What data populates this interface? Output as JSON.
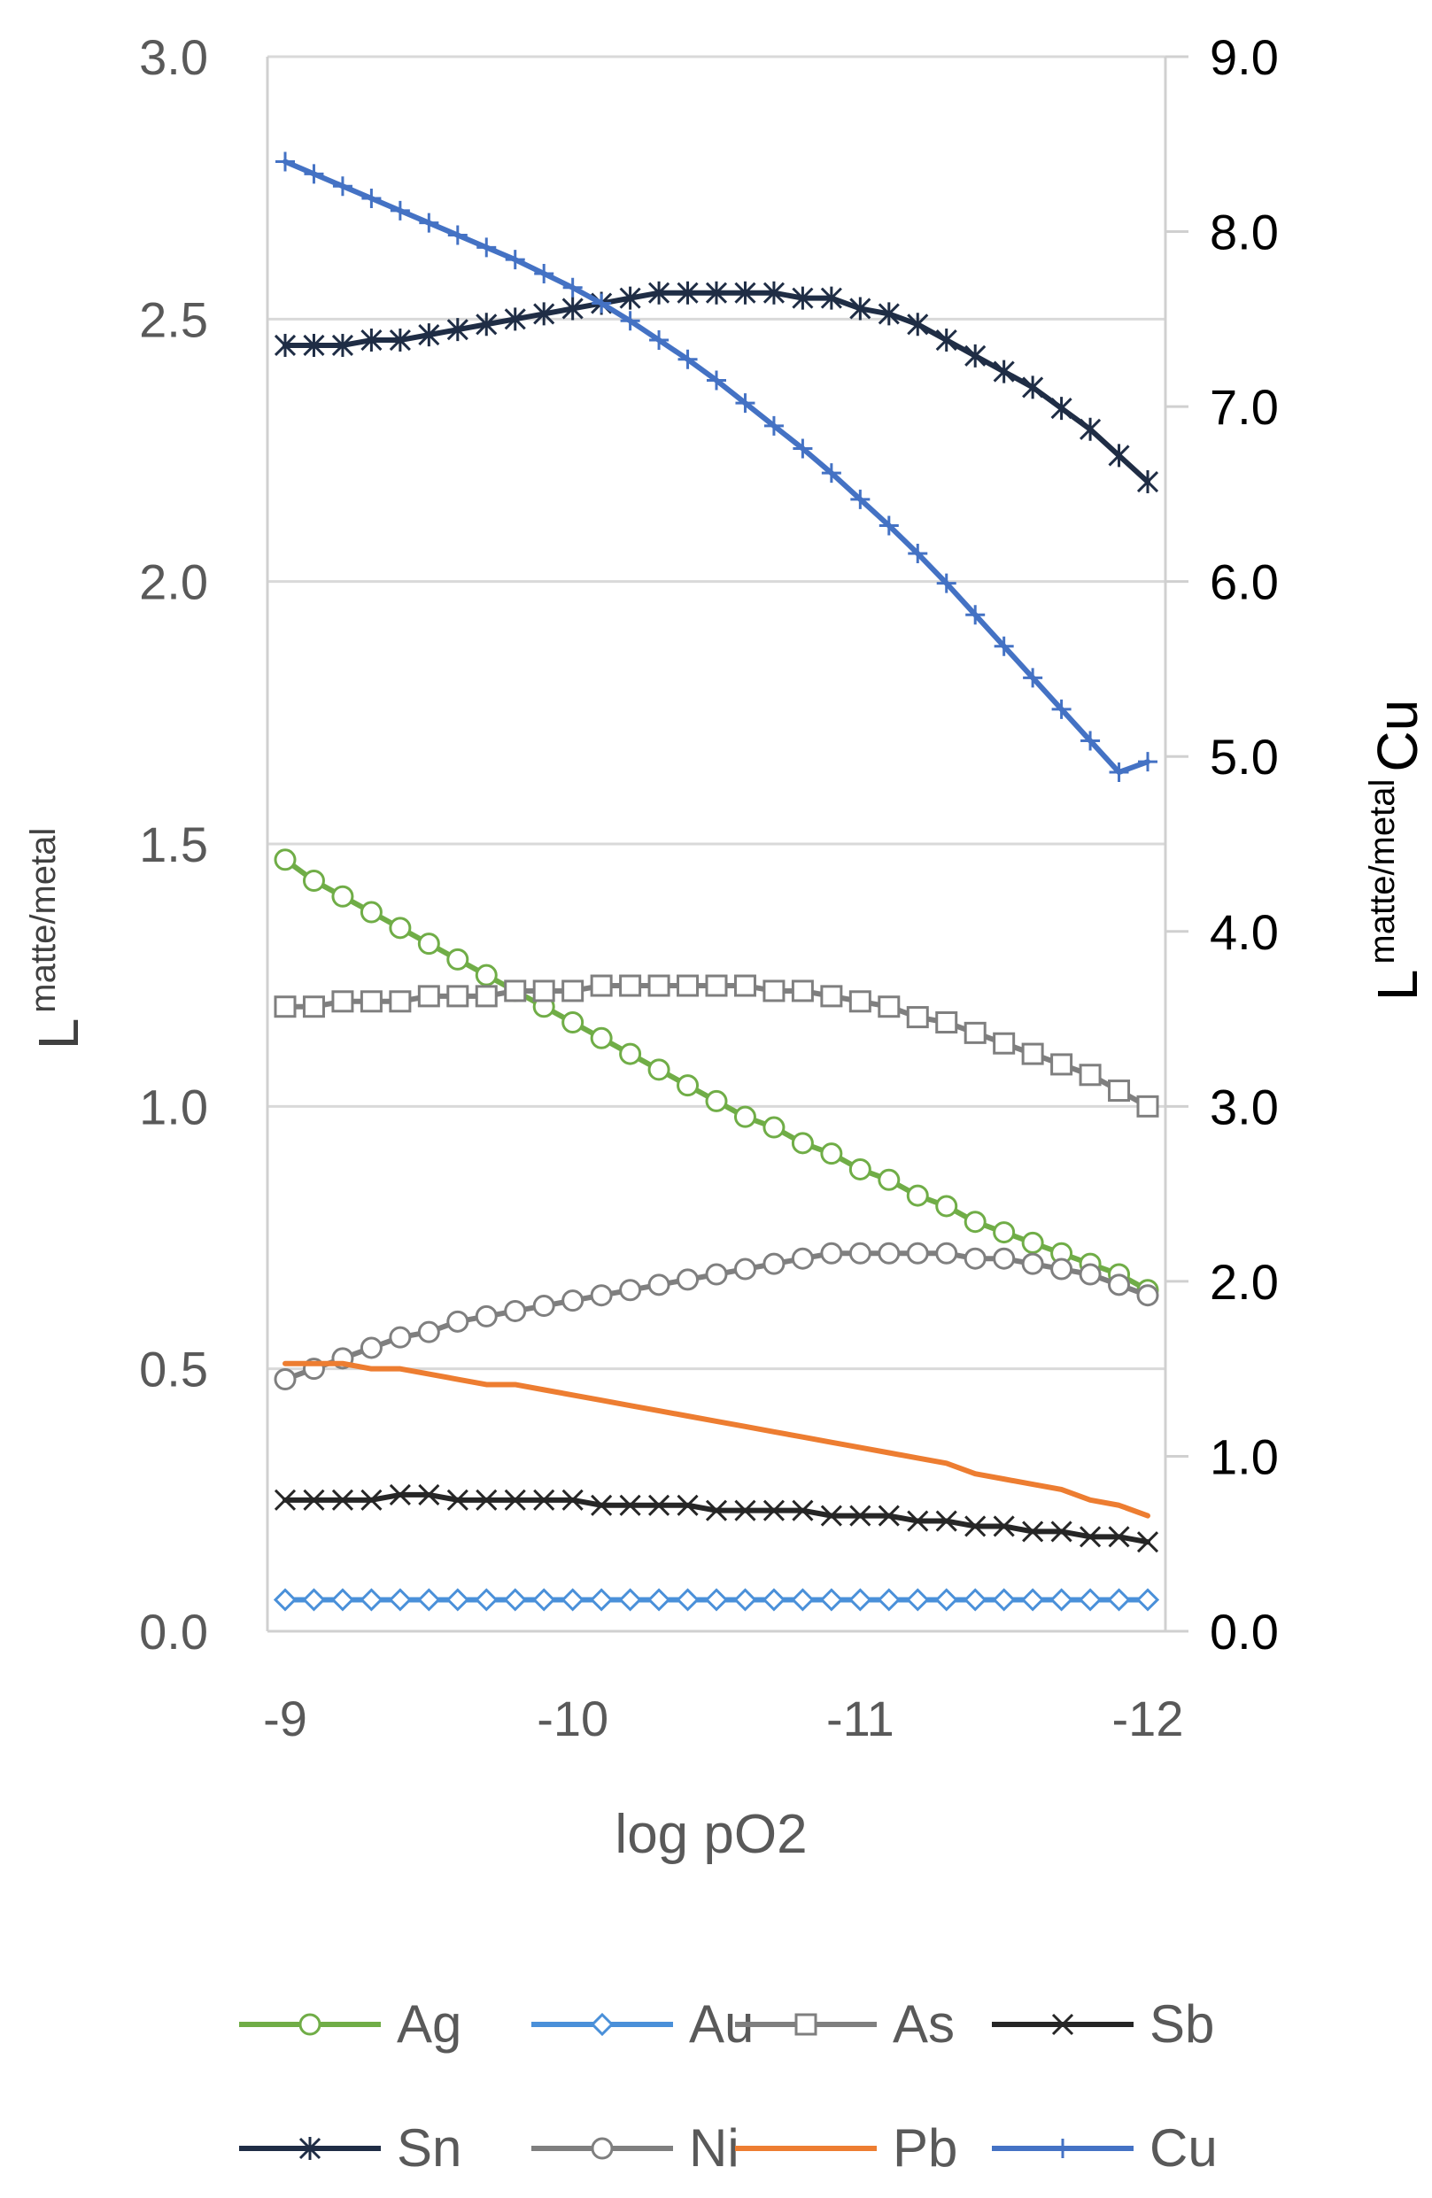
{
  "chart_data": {
    "type": "line",
    "xlabel": "log pO2",
    "ylabel": {
      "main": "L",
      "sup": "matte/metal"
    },
    "y2label": {
      "main": "L",
      "sup": "matte/metal",
      "suffix": "Cu"
    },
    "x": [
      -9,
      -9.1,
      -9.2,
      -9.3,
      -9.4,
      -9.5,
      -9.6,
      -9.7,
      -9.8,
      -9.9,
      -10,
      -10.1,
      -10.2,
      -10.3,
      -10.4,
      -10.5,
      -10.6,
      -10.7,
      -10.8,
      -10.9,
      -11,
      -11.1,
      -11.2,
      -11.3,
      -11.4,
      -11.5,
      -11.6,
      -11.7,
      -11.8,
      -11.9,
      -12
    ],
    "xlim": [
      -9,
      -12
    ],
    "x_ticks": [
      "-9",
      "-10",
      "-11",
      "-12"
    ],
    "ylim": [
      0,
      3
    ],
    "y_ticks": [
      "0.0",
      "0.5",
      "1.0",
      "1.5",
      "2.0",
      "2.5",
      "3.0"
    ],
    "y2lim": [
      0,
      9
    ],
    "y2_ticks": [
      "0.0",
      "1.0",
      "2.0",
      "3.0",
      "4.0",
      "5.0",
      "6.0",
      "7.0",
      "8.0",
      "9.0"
    ],
    "grid": true,
    "legend_position": "bottom",
    "series": [
      {
        "name": "Ag",
        "axis": "left",
        "color": "#70ad47",
        "marker": "circle",
        "values": [
          1.47,
          1.43,
          1.4,
          1.37,
          1.34,
          1.31,
          1.28,
          1.25,
          1.22,
          1.19,
          1.16,
          1.13,
          1.1,
          1.07,
          1.04,
          1.01,
          0.98,
          0.96,
          0.93,
          0.91,
          0.88,
          0.86,
          0.83,
          0.81,
          0.78,
          0.76,
          0.74,
          0.72,
          0.7,
          0.68,
          0.65
        ]
      },
      {
        "name": "Au",
        "axis": "left",
        "color": "#4a90d9",
        "marker": "diamond",
        "values": [
          0.06,
          0.06,
          0.06,
          0.06,
          0.06,
          0.06,
          0.06,
          0.06,
          0.06,
          0.06,
          0.06,
          0.06,
          0.06,
          0.06,
          0.06,
          0.06,
          0.06,
          0.06,
          0.06,
          0.06,
          0.06,
          0.06,
          0.06,
          0.06,
          0.06,
          0.06,
          0.06,
          0.06,
          0.06,
          0.06,
          0.06
        ]
      },
      {
        "name": "As",
        "axis": "left",
        "color": "#7f7f7f",
        "marker": "square",
        "values": [
          1.19,
          1.19,
          1.2,
          1.2,
          1.2,
          1.21,
          1.21,
          1.21,
          1.22,
          1.22,
          1.22,
          1.23,
          1.23,
          1.23,
          1.23,
          1.23,
          1.23,
          1.22,
          1.22,
          1.21,
          1.2,
          1.19,
          1.17,
          1.16,
          1.14,
          1.12,
          1.1,
          1.08,
          1.06,
          1.03,
          1.0
        ]
      },
      {
        "name": "Sb",
        "axis": "left",
        "color": "#262626",
        "marker": "x",
        "values": [
          0.25,
          0.25,
          0.25,
          0.25,
          0.26,
          0.26,
          0.25,
          0.25,
          0.25,
          0.25,
          0.25,
          0.24,
          0.24,
          0.24,
          0.24,
          0.23,
          0.23,
          0.23,
          0.23,
          0.22,
          0.22,
          0.22,
          0.21,
          0.21,
          0.2,
          0.2,
          0.19,
          0.19,
          0.18,
          0.18,
          0.17
        ]
      },
      {
        "name": "Sn",
        "axis": "left",
        "color": "#1f2d45",
        "marker": "star",
        "values": [
          2.45,
          2.45,
          2.45,
          2.46,
          2.46,
          2.47,
          2.48,
          2.49,
          2.5,
          2.51,
          2.52,
          2.53,
          2.54,
          2.55,
          2.55,
          2.55,
          2.55,
          2.55,
          2.54,
          2.54,
          2.52,
          2.51,
          2.49,
          2.46,
          2.43,
          2.4,
          2.37,
          2.33,
          2.29,
          2.24,
          2.19
        ]
      },
      {
        "name": "Ni",
        "axis": "left",
        "color": "#7f7f7f",
        "marker": "circle",
        "values": [
          0.48,
          0.5,
          0.52,
          0.54,
          0.56,
          0.57,
          0.59,
          0.6,
          0.61,
          0.62,
          0.63,
          0.64,
          0.65,
          0.66,
          0.67,
          0.68,
          0.69,
          0.7,
          0.71,
          0.72,
          0.72,
          0.72,
          0.72,
          0.72,
          0.71,
          0.71,
          0.7,
          0.69,
          0.68,
          0.66,
          0.64
        ]
      },
      {
        "name": "Pb",
        "axis": "left",
        "color": "#ed7d31",
        "marker": "none",
        "values": [
          0.51,
          0.51,
          0.51,
          0.5,
          0.5,
          0.49,
          0.48,
          0.47,
          0.47,
          0.46,
          0.45,
          0.44,
          0.43,
          0.42,
          0.41,
          0.4,
          0.39,
          0.38,
          0.37,
          0.36,
          0.35,
          0.34,
          0.33,
          0.32,
          0.3,
          0.29,
          0.28,
          0.27,
          0.25,
          0.24,
          0.22
        ]
      },
      {
        "name": "Cu",
        "axis": "right",
        "color": "#4472c4",
        "marker": "plus",
        "values": [
          8.4,
          8.33,
          8.26,
          8.19,
          8.12,
          8.05,
          7.98,
          7.91,
          7.84,
          7.76,
          7.68,
          7.59,
          7.49,
          7.38,
          7.27,
          7.15,
          7.02,
          6.89,
          6.76,
          6.62,
          6.47,
          6.32,
          6.16,
          5.99,
          5.81,
          5.63,
          5.45,
          5.27,
          5.09,
          4.91,
          4.97
        ]
      }
    ]
  }
}
